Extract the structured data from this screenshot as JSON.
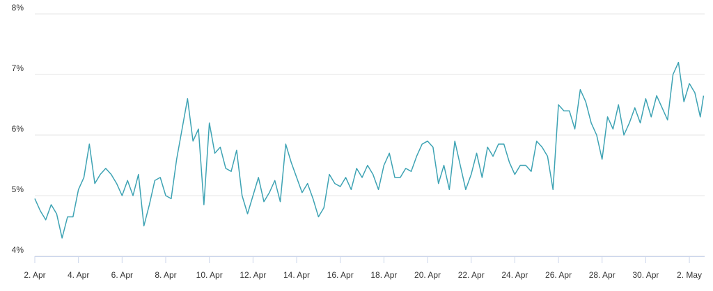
{
  "chart_data": {
    "type": "line",
    "x": [
      0,
      0.25,
      0.5,
      0.75,
      1,
      1.25,
      1.5,
      1.75,
      2,
      2.25,
      2.5,
      2.75,
      3,
      3.25,
      3.5,
      3.75,
      4,
      4.25,
      4.5,
      4.75,
      5,
      5.25,
      5.5,
      5.75,
      6,
      6.25,
      6.5,
      6.75,
      7,
      7.25,
      7.5,
      7.75,
      8,
      8.25,
      8.5,
      8.75,
      9,
      9.25,
      9.5,
      9.75,
      10,
      10.25,
      10.5,
      10.75,
      11,
      11.25,
      11.5,
      11.75,
      12,
      12.25,
      12.5,
      12.75,
      13,
      13.25,
      13.5,
      13.75,
      14,
      14.25,
      14.5,
      14.75,
      15,
      15.25,
      15.5,
      15.75,
      16,
      16.25,
      16.5,
      16.75,
      17,
      17.25,
      17.5,
      17.75,
      18,
      18.25,
      18.5,
      18.75,
      19,
      19.25,
      19.5,
      19.75,
      20,
      20.25,
      20.5,
      20.75,
      21,
      21.25,
      21.5,
      21.75,
      22,
      22.25,
      22.5,
      22.75,
      23,
      23.25,
      23.5,
      23.75,
      24,
      24.25,
      24.5,
      24.75,
      25,
      25.25,
      25.5,
      25.75,
      26,
      26.25,
      26.5,
      26.75,
      27,
      27.25,
      27.5,
      27.75,
      28,
      28.25,
      28.5,
      28.75,
      29,
      29.25,
      29.5,
      29.75,
      30,
      30.25,
      30.5,
      30.65
    ],
    "values": [
      4.95,
      4.75,
      4.6,
      4.85,
      4.7,
      4.3,
      4.65,
      4.65,
      5.1,
      5.3,
      5.85,
      5.2,
      5.35,
      5.45,
      5.35,
      5.2,
      5.0,
      5.25,
      5.0,
      5.35,
      4.5,
      4.85,
      5.25,
      5.3,
      5.0,
      4.95,
      5.6,
      6.1,
      6.6,
      5.9,
      6.1,
      4.85,
      6.2,
      5.7,
      5.8,
      5.45,
      5.4,
      5.75,
      5.0,
      4.7,
      5.0,
      5.3,
      4.9,
      5.05,
      5.25,
      4.9,
      5.85,
      5.55,
      5.3,
      5.05,
      5.2,
      4.95,
      4.65,
      4.8,
      5.35,
      5.2,
      5.15,
      5.3,
      5.1,
      5.45,
      5.3,
      5.5,
      5.35,
      5.1,
      5.5,
      5.7,
      5.3,
      5.3,
      5.45,
      5.4,
      5.65,
      5.85,
      5.9,
      5.8,
      5.2,
      5.5,
      5.1,
      5.9,
      5.5,
      5.1,
      5.35,
      5.7,
      5.3,
      5.8,
      5.65,
      5.85,
      5.85,
      5.55,
      5.35,
      5.5,
      5.5,
      5.4,
      5.9,
      5.8,
      5.65,
      5.1,
      6.5,
      6.4,
      6.4,
      6.1,
      6.75,
      6.55,
      6.2,
      6.0,
      5.6,
      6.3,
      6.1,
      6.5,
      6.0,
      6.2,
      6.45,
      6.2,
      6.6,
      6.3,
      6.65,
      6.45,
      6.25,
      7.0,
      7.2,
      6.55,
      6.85,
      6.7,
      6.3,
      6.65
    ],
    "color": "#3ea3b4",
    "xlim": [
      0,
      30.7
    ],
    "xticks": [
      {
        "value": 0,
        "label": "2. Apr"
      },
      {
        "value": 2,
        "label": "4. Apr"
      },
      {
        "value": 4,
        "label": "6. Apr"
      },
      {
        "value": 6,
        "label": "8. Apr"
      },
      {
        "value": 8,
        "label": "10. Apr"
      },
      {
        "value": 10,
        "label": "12. Apr"
      },
      {
        "value": 12,
        "label": "14. Apr"
      },
      {
        "value": 14,
        "label": "16. Apr"
      },
      {
        "value": 16,
        "label": "18. Apr"
      },
      {
        "value": 18,
        "label": "20. Apr"
      },
      {
        "value": 20,
        "label": "22. Apr"
      },
      {
        "value": 22,
        "label": "24. Apr"
      },
      {
        "value": 24,
        "label": "26. Apr"
      },
      {
        "value": 26,
        "label": "28. Apr"
      },
      {
        "value": 28,
        "label": "30. Apr"
      },
      {
        "value": 30,
        "label": "2. May"
      }
    ],
    "ylim": [
      4,
      8
    ],
    "yticks": [
      {
        "value": 4,
        "label": "4%"
      },
      {
        "value": 5,
        "label": "5%"
      },
      {
        "value": 6,
        "label": "6%"
      },
      {
        "value": 7,
        "label": "7%"
      },
      {
        "value": 8,
        "label": "8%"
      }
    ],
    "grid": true
  }
}
